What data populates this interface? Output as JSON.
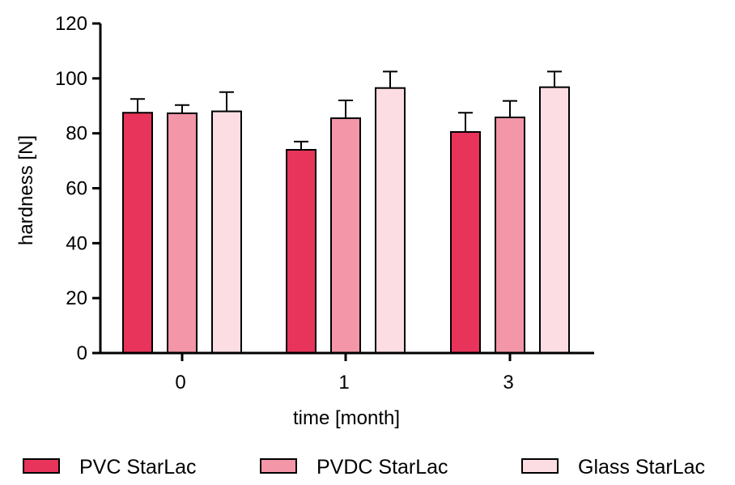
{
  "chart_data": {
    "type": "bar",
    "title": "",
    "xlabel": "time [month]",
    "ylabel": "hardness [N]",
    "categories": [
      "0",
      "1",
      "3"
    ],
    "ylim": [
      0,
      120
    ],
    "yticks": [
      0,
      20,
      40,
      60,
      80,
      100,
      120
    ],
    "grid": false,
    "legend": "bottom",
    "series": [
      {
        "name": "PVC StarLac",
        "color": "#e8345a",
        "values": [
          87.5,
          74,
          80.5
        ],
        "errors": [
          5,
          3,
          7
        ]
      },
      {
        "name": "PVDC StarLac",
        "color": "#f296a8",
        "values": [
          87.3,
          85.5,
          85.8
        ],
        "errors": [
          3,
          6.5,
          6
        ]
      },
      {
        "name": "Glass StarLac",
        "color": "#fcdde3",
        "values": [
          88,
          96.5,
          96.8
        ],
        "errors": [
          7,
          6,
          5.7
        ]
      }
    ]
  }
}
